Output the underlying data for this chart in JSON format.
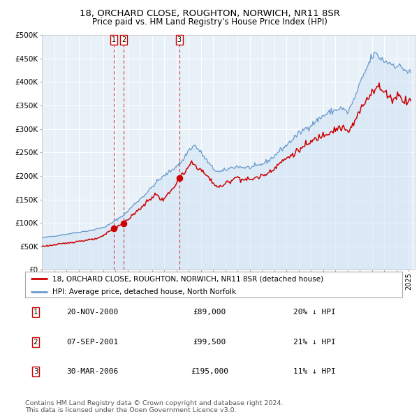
{
  "title": "18, ORCHARD CLOSE, ROUGHTON, NORWICH, NR11 8SR",
  "subtitle": "Price paid vs. HM Land Registry's House Price Index (HPI)",
  "legend_property": "18, ORCHARD CLOSE, ROUGHTON, NORWICH, NR11 8SR (detached house)",
  "legend_hpi": "HPI: Average price, detached house, North Norfolk",
  "footer1": "Contains HM Land Registry data © Crown copyright and database right 2024.",
  "footer2": "This data is licensed under the Open Government Licence v3.0.",
  "transactions": [
    {
      "num": 1,
      "date": "20-NOV-2000",
      "price": 89000,
      "pct": "20%",
      "dir": "↓"
    },
    {
      "num": 2,
      "date": "07-SEP-2001",
      "price": 99500,
      "pct": "21%",
      "dir": "↓"
    },
    {
      "num": 3,
      "date": "30-MAR-2006",
      "price": 195000,
      "pct": "11%",
      "dir": "↓"
    }
  ],
  "transaction_dates_decimal": [
    2000.89,
    2001.685,
    2006.24
  ],
  "transaction_prices": [
    89000,
    99500,
    195000
  ],
  "property_color": "#cc0000",
  "hpi_color": "#6699cc",
  "hpi_fill_color": "#cce0f5",
  "vline_color_red": "#cc0000",
  "vline_color_blue": "#99bbdd",
  "ylim": [
    0,
    500000
  ],
  "yticks": [
    0,
    50000,
    100000,
    150000,
    200000,
    250000,
    300000,
    350000,
    400000,
    450000,
    500000
  ],
  "xlim_start": 1995.0,
  "xlim_end": 2025.5,
  "background_color": "#e8f0f8",
  "grid_color": "#ffffff",
  "hpi_anchors_t": [
    1995.0,
    1996.0,
    1997.0,
    1998.0,
    1999.0,
    2000.0,
    2000.5,
    2001.0,
    2001.75,
    2002.5,
    2003.5,
    2004.5,
    2005.5,
    2006.5,
    2007.0,
    2007.5,
    2008.0,
    2008.5,
    2009.0,
    2009.5,
    2010.0,
    2010.5,
    2011.0,
    2011.5,
    2012.0,
    2012.5,
    2013.0,
    2013.5,
    2014.0,
    2014.5,
    2015.0,
    2015.5,
    2016.0,
    2016.5,
    2017.0,
    2017.5,
    2018.0,
    2018.5,
    2019.0,
    2019.5,
    2020.0,
    2020.5,
    2021.0,
    2021.5,
    2022.0,
    2022.3,
    2022.7,
    2023.0,
    2023.5,
    2024.0,
    2024.5,
    2025.0
  ],
  "hpi_anchors_v": [
    68000,
    72000,
    76000,
    80000,
    84000,
    90000,
    96000,
    105000,
    118000,
    138000,
    162000,
    190000,
    210000,
    232000,
    255000,
    265000,
    250000,
    232000,
    215000,
    208000,
    212000,
    218000,
    220000,
    218000,
    218000,
    220000,
    225000,
    232000,
    242000,
    255000,
    265000,
    278000,
    290000,
    300000,
    308000,
    318000,
    328000,
    335000,
    340000,
    345000,
    335000,
    360000,
    395000,
    425000,
    455000,
    460000,
    450000,
    445000,
    440000,
    435000,
    430000,
    420000
  ],
  "prop_anchors_t": [
    1995.0,
    1996.0,
    1997.0,
    1998.0,
    1999.0,
    1999.75,
    2000.89,
    2001.685,
    2002.5,
    2003.5,
    2004.3,
    2004.8,
    2005.5,
    2006.24,
    2006.8,
    2007.2,
    2007.8,
    2008.5,
    2009.0,
    2009.5,
    2010.0,
    2010.5,
    2011.0,
    2011.5,
    2012.0,
    2012.5,
    2013.0,
    2013.5,
    2014.0,
    2014.5,
    2015.0,
    2015.5,
    2016.0,
    2016.5,
    2017.0,
    2017.5,
    2018.0,
    2018.5,
    2019.0,
    2019.5,
    2020.0,
    2020.5,
    2021.0,
    2021.5,
    2022.0,
    2022.5,
    2023.0,
    2023.3,
    2023.7,
    2024.0,
    2024.3,
    2024.6,
    2025.0
  ],
  "prop_anchors_v": [
    50000,
    53000,
    57000,
    61000,
    64000,
    68000,
    89000,
    99500,
    118000,
    142000,
    162000,
    148000,
    165000,
    195000,
    210000,
    228000,
    218000,
    200000,
    185000,
    175000,
    183000,
    192000,
    198000,
    192000,
    192000,
    196000,
    200000,
    207000,
    217000,
    228000,
    237000,
    246000,
    255000,
    263000,
    272000,
    280000,
    288000,
    294000,
    300000,
    304000,
    293000,
    310000,
    338000,
    360000,
    382000,
    390000,
    378000,
    373000,
    363000,
    368000,
    375000,
    358000,
    362000
  ]
}
